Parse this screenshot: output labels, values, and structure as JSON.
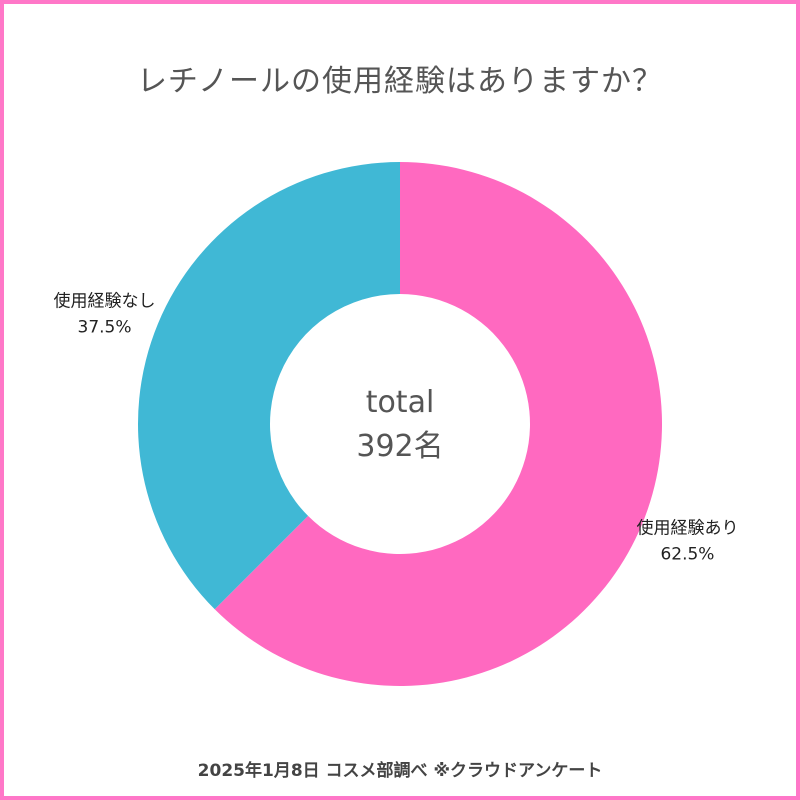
{
  "title": "レチノールの使用経験はありますか？",
  "center": {
    "line1": "total",
    "line2": "392名"
  },
  "footer": "2025年1月8日 コスメ部調べ ※クラウドアンケート",
  "colors": {
    "border": "#ff77c8",
    "slice_yes": "#ff69c0",
    "slice_no": "#40b8d5"
  },
  "chart_data": {
    "type": "pie",
    "style": "donut",
    "title": "レチノールの使用経験はありますか？",
    "total": 392,
    "slices": [
      {
        "label": "使用経験あり",
        "percent_label": "62.5%",
        "value": 62.5,
        "color": "#ff69c0"
      },
      {
        "label": "使用経験なし",
        "percent_label": "37.5%",
        "value": 37.5,
        "color": "#40b8d5"
      }
    ]
  }
}
